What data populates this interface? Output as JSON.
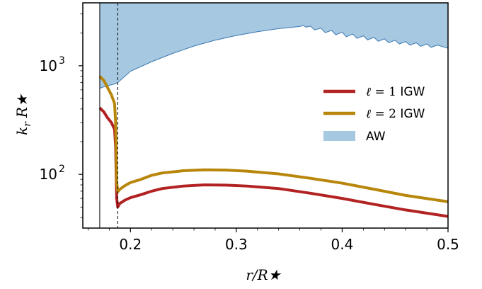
{
  "chart_data": {
    "type": "line",
    "xlabel": "r/R★",
    "ylabel": "k_r R★",
    "ylabel_parts": {
      "main": "k",
      "sub": "r",
      "star": "R★"
    },
    "xlim": [
      0.155,
      0.5
    ],
    "ylim": [
      32,
      3800
    ],
    "yscale": "log",
    "x_ticks": [
      0.2,
      0.3,
      0.4,
      0.5
    ],
    "x_tick_labels": [
      "0.2",
      "0.3",
      "0.4",
      "0.5"
    ],
    "y_ticks": [
      100,
      1000
    ],
    "y_tick_labels": [
      {
        "base": "10",
        "exp": "2"
      },
      {
        "base": "10",
        "exp": "3"
      }
    ],
    "solid_vline_x": 0.171,
    "dashed_vline_x": 0.188,
    "legend_placement": "center-right",
    "series": [
      {
        "name": "ℓ = 1 IGW",
        "legend_label": {
          "ell": "ℓ",
          "eq": " = 1",
          "suffix": " IGW"
        },
        "color": "#b22222",
        "x": [
          0.171,
          0.175,
          0.178,
          0.182,
          0.185,
          0.186,
          0.1865,
          0.187,
          0.188,
          0.19,
          0.195,
          0.2,
          0.21,
          0.22,
          0.23,
          0.25,
          0.27,
          0.29,
          0.31,
          0.34,
          0.37,
          0.4,
          0.43,
          0.46,
          0.5
        ],
        "values": [
          410,
          375,
          335,
          300,
          260,
          180,
          100,
          60,
          50,
          54,
          58,
          61,
          65,
          70,
          74,
          78,
          80,
          79.5,
          78,
          74,
          67,
          60,
          53,
          47,
          41
        ]
      },
      {
        "name": "ℓ = 2 IGW",
        "legend_label": {
          "ell": "ℓ",
          "eq": " = 2",
          "suffix": " IGW"
        },
        "color": "#b8860b",
        "x": [
          0.171,
          0.175,
          0.178,
          0.182,
          0.185,
          0.186,
          0.1865,
          0.187,
          0.188,
          0.19,
          0.195,
          0.2,
          0.21,
          0.22,
          0.23,
          0.25,
          0.27,
          0.29,
          0.31,
          0.34,
          0.37,
          0.4,
          0.43,
          0.46,
          0.5
        ],
        "values": [
          800,
          730,
          640,
          540,
          450,
          300,
          150,
          85,
          69,
          73,
          79,
          84,
          90,
          98,
          103,
          108,
          110,
          109.5,
          107,
          101,
          92,
          83,
          73,
          64,
          56
        ]
      }
    ],
    "area_series": {
      "name": "AW",
      "legend_label": "AW",
      "fill_color": "#a6c8e0",
      "edge_color": "#3a78b5",
      "x_lower": [
        0.171,
        0.175,
        0.18,
        0.185,
        0.188
      ],
      "lower": [
        620,
        640,
        660,
        680,
        700
      ],
      "x_upper": [
        0.188,
        0.2,
        0.22,
        0.24,
        0.26,
        0.28,
        0.3,
        0.32,
        0.34,
        0.36,
        0.363,
        0.366,
        0.37,
        0.374,
        0.38,
        0.384,
        0.39,
        0.394,
        0.4,
        0.404,
        0.41,
        0.414,
        0.42,
        0.424,
        0.43,
        0.434,
        0.44,
        0.444,
        0.45,
        0.454,
        0.46,
        0.464,
        0.47,
        0.474,
        0.48,
        0.484,
        0.49,
        0.5
      ],
      "upper": [
        700,
        890,
        1090,
        1300,
        1520,
        1720,
        1900,
        2060,
        2200,
        2300,
        2350,
        2270,
        2320,
        2140,
        2220,
        2020,
        2120,
        1930,
        2040,
        1850,
        1960,
        1790,
        1890,
        1730,
        1830,
        1680,
        1770,
        1630,
        1720,
        1590,
        1670,
        1550,
        1630,
        1510,
        1590,
        1480,
        1550,
        1450
      ]
    }
  }
}
